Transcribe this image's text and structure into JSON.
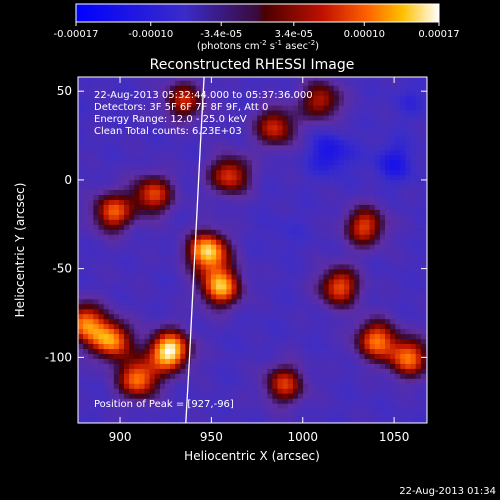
{
  "chart_data": {
    "type": "heatmap",
    "title": "Reconstructed RHESSI Image",
    "xlabel": "Heliocentric X (arcsec)",
    "ylabel": "Heliocentric Y (arcsec)",
    "xlim": [
      877,
      1068
    ],
    "ylim": [
      -137,
      58
    ],
    "x_ticks": [
      900,
      950,
      1000,
      1050
    ],
    "y_ticks": [
      50,
      0,
      -50,
      -100
    ],
    "colorbar": {
      "range": [
        -0.00017,
        0.00017
      ],
      "ticks": [
        -0.00017,
        -0.0001,
        -3.4e-05,
        3.4e-05,
        0.0001,
        0.00017
      ],
      "tick_labels": [
        "-0.00017",
        "-0.00010",
        "-3.4e-05",
        "3.4e-05",
        "0.00010",
        "0.00017"
      ],
      "unit_main": "(photons cm",
      "unit_sup1": "-2",
      "unit_mid": " s",
      "unit_sup2": "-1",
      "unit_end": " asec",
      "unit_sup3": "-2",
      "unit_close": ")"
    },
    "annotations": {
      "time_range": "22-Aug-2013 05:32:44.000 to 05:37:36.000",
      "detectors": "Detectors: 3F 5F 6F 7F 8F 9F, Att 0",
      "energy_range": "Energy Range: 12.0 - 25.0 keV",
      "clean_counts": "Clean     Total counts: 6.23E+03",
      "peak_position": "Position of Peak = [927,-96]"
    },
    "limb_curve": [
      [
        946,
        58
      ],
      [
        944,
        20
      ],
      [
        942,
        -20
      ],
      [
        940,
        -60
      ],
      [
        938,
        -100
      ],
      [
        936,
        -137
      ]
    ],
    "peaks": [
      {
        "x": 927,
        "y": -96,
        "value": 0.00017
      },
      {
        "x": 895,
        "y": -90,
        "value": 0.00012
      },
      {
        "x": 948,
        "y": -40,
        "value": 0.00015
      },
      {
        "x": 955,
        "y": -60,
        "value": 0.00013
      },
      {
        "x": 910,
        "y": -112,
        "value": 0.00011
      },
      {
        "x": 880,
        "y": -80,
        "value": 0.0001
      },
      {
        "x": 1040,
        "y": -90,
        "value": 0.0001
      },
      {
        "x": 1058,
        "y": -100,
        "value": 0.0001
      },
      {
        "x": 1020,
        "y": -60,
        "value": 9e-05
      },
      {
        "x": 1034,
        "y": -26,
        "value": 8e-05
      },
      {
        "x": 960,
        "y": 3,
        "value": 8e-05
      },
      {
        "x": 918,
        "y": -8,
        "value": 8e-05
      },
      {
        "x": 896,
        "y": -18,
        "value": 9e-05
      },
      {
        "x": 985,
        "y": 30,
        "value": 7e-05
      },
      {
        "x": 990,
        "y": -115,
        "value": 7e-05
      },
      {
        "x": 1010,
        "y": 45,
        "value": 6e-05
      },
      {
        "x": 935,
        "y": 45,
        "value": 6e-05
      }
    ],
    "troughs": [
      {
        "x": 1015,
        "y": 15,
        "value": -0.00014
      },
      {
        "x": 1050,
        "y": 10,
        "value": -0.00013
      },
      {
        "x": 1060,
        "y": 45,
        "value": -0.0001
      },
      {
        "x": 990,
        "y": -30,
        "value": -9e-05
      },
      {
        "x": 975,
        "y": -85,
        "value": -8e-05
      },
      {
        "x": 880,
        "y": 35,
        "value": -8e-05
      },
      {
        "x": 905,
        "y": -55,
        "value": -7e-05
      }
    ]
  },
  "footer": {
    "timestamp": "22-Aug-2013 01:34"
  }
}
